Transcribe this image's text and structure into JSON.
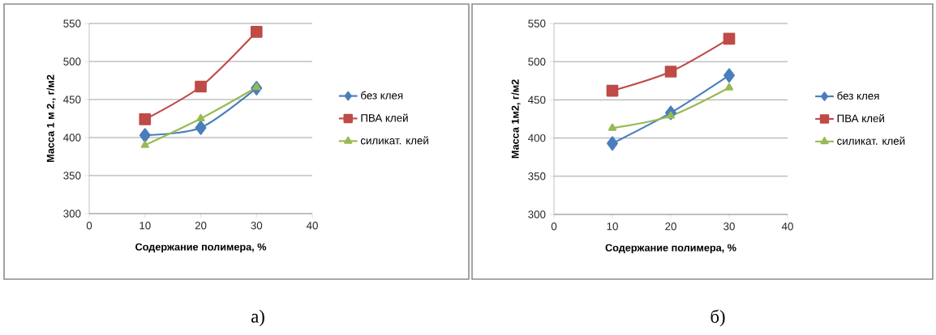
{
  "chart_data": [
    {
      "type": "line",
      "xlabel": "Содержание полимера, %",
      "ylabel": "Масса 1 м 2., г/м2",
      "x": [
        10,
        20,
        30
      ],
      "xlim": [
        0,
        40
      ],
      "xticks": [
        0,
        10,
        20,
        30,
        40
      ],
      "ylim": [
        300,
        550
      ],
      "yticks": [
        300,
        350,
        400,
        450,
        500,
        550
      ],
      "grid": "y",
      "legend": "right",
      "annotations": [
        "а)"
      ],
      "series": [
        {
          "name": "без клея",
          "color": "#4a7ebb",
          "marker": "diamond",
          "values": [
            403,
            413,
            465
          ]
        },
        {
          "name": "ПВА клей",
          "color": "#be4b48",
          "marker": "square",
          "values": [
            424,
            467,
            539
          ]
        },
        {
          "name": "силикат. клей",
          "color": "#98b954",
          "marker": "triangle",
          "values": [
            390,
            425,
            466
          ]
        }
      ]
    },
    {
      "type": "line",
      "xlabel": "Содержание полимера, %",
      "ylabel": "Масса 1м2, г/м2",
      "x": [
        10,
        20,
        30
      ],
      "xlim": [
        0,
        40
      ],
      "xticks": [
        0,
        10,
        20,
        30,
        40
      ],
      "ylim": [
        300,
        550
      ],
      "yticks": [
        300,
        350,
        400,
        450,
        500,
        550
      ],
      "grid": "y",
      "legend": "right",
      "annotations": [
        "б)"
      ],
      "series": [
        {
          "name": "без клея",
          "color": "#4a7ebb",
          "marker": "diamond",
          "values": [
            393,
            433,
            482
          ]
        },
        {
          "name": "ПВА клей",
          "color": "#be4b48",
          "marker": "square",
          "values": [
            462,
            487,
            530
          ]
        },
        {
          "name": "силикат. клей",
          "color": "#98b954",
          "marker": "triangle",
          "values": [
            413,
            429,
            466
          ]
        }
      ]
    }
  ]
}
